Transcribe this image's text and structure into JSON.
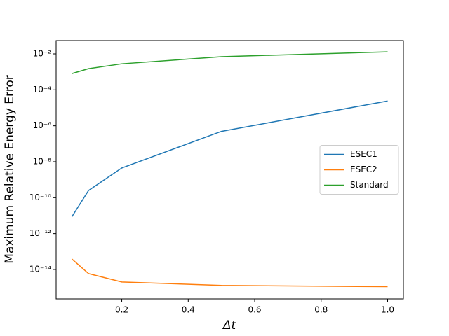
{
  "chart_data": {
    "type": "line",
    "xlabel": "Δt",
    "ylabel": "Maximum Relative Energy Error",
    "x": [
      0.05,
      0.1,
      0.2,
      0.5,
      1.0
    ],
    "series": [
      {
        "name": "ESEC1",
        "color": "#1f77b4",
        "values": [
          8.7e-12,
          2.5e-10,
          4.5e-09,
          4.9e-07,
          2.4e-05
        ]
      },
      {
        "name": "ESEC2",
        "color": "#ff7f0e",
        "values": [
          3.8e-14,
          5.9e-15,
          2e-15,
          1.3e-15,
          1.1e-15
        ]
      },
      {
        "name": "Standard",
        "color": "#2ca02c",
        "values": [
          0.0008,
          0.0015,
          0.0028,
          0.007,
          0.013
        ]
      }
    ],
    "xlim": [
      0.0025,
      1.0475
    ],
    "ylim": [
      2.3e-16,
      0.055
    ],
    "yscale": "log",
    "xticks": [
      0.2,
      0.4,
      0.6,
      0.8,
      {
        "value": 1,
        "label": "1.0"
      }
    ],
    "yticks": [
      {
        "value": 1e-14,
        "label": "10⁻¹⁴"
      },
      {
        "value": 1e-12,
        "label": "10⁻¹²"
      },
      {
        "value": 1e-10,
        "label": "10⁻¹⁰"
      },
      {
        "value": 1e-08,
        "label": "10⁻⁸"
      },
      {
        "value": 1e-06,
        "label": "10⁻⁶"
      },
      {
        "value": 0.0001,
        "label": "10⁻⁴"
      },
      {
        "value": 0.01,
        "label": "10⁻²"
      }
    ],
    "legend": "center right"
  }
}
